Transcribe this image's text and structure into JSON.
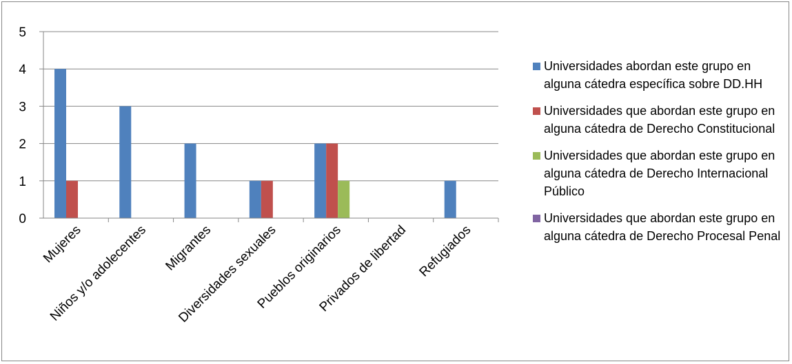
{
  "chart_data": {
    "type": "bar",
    "categories": [
      "Mujeres",
      "Niños y/o adolecentes",
      "Migrantes",
      "Diversidades sexuales",
      "Pueblos originarios",
      "Privados de libertad",
      "Refugiados"
    ],
    "series": [
      {
        "name": "Universidades abordan este grupo en alguna cátedra específica sobre DD.HH",
        "color": "#4F81BD",
        "values": [
          4,
          3,
          2,
          1,
          2,
          0,
          1
        ]
      },
      {
        "name": "Universidades que abordan este grupo en alguna cátedra de Derecho Constitucional",
        "color": "#C0504D",
        "values": [
          1,
          0,
          0,
          1,
          2,
          0,
          0
        ]
      },
      {
        "name": "Universidades que abordan este grupo en alguna cátedra de Derecho Internacional Público",
        "color": "#9BBB59",
        "values": [
          0,
          0,
          0,
          0,
          1,
          0,
          0
        ]
      },
      {
        "name": "Universidades que abordan este grupo en alguna  cátedra de Derecho Procesal Penal",
        "color": "#8064A2",
        "values": [
          0,
          0,
          0,
          0,
          0,
          0,
          0
        ]
      }
    ],
    "yticks": [
      0,
      1,
      2,
      3,
      4,
      5
    ],
    "ylim": [
      0,
      5
    ],
    "grid": true,
    "legend_position": "right"
  }
}
